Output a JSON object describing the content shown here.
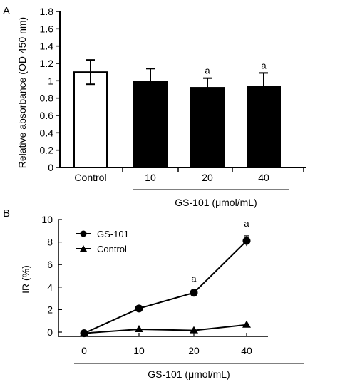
{
  "chart_data": [
    {
      "panel": "A",
      "type": "bar",
      "ylabel": "Relative absorbance (OD 450 nm)",
      "ylim": [
        0,
        1.8
      ],
      "yticks": [
        "0",
        "0.2",
        "0.4",
        "0.6",
        "0.8",
        "1",
        "1.2",
        "1.4",
        "1.6",
        "1.8"
      ],
      "categories": [
        "Control",
        "10",
        "20",
        "40"
      ],
      "values": [
        1.1,
        0.99,
        0.92,
        0.93
      ],
      "errors": [
        0.14,
        0.15,
        0.11,
        0.16
      ],
      "fills": [
        "#ffffff",
        "#000000",
        "#000000",
        "#000000"
      ],
      "annotations": [
        "",
        "",
        "a",
        "a"
      ],
      "group_label": "GS-101 (μmol/mL)"
    },
    {
      "panel": "B",
      "type": "line",
      "ylabel": "IR (%)",
      "ylim": [
        0,
        10
      ],
      "yticks": [
        "0",
        "2",
        "4",
        "6",
        "8",
        "10"
      ],
      "x": [
        0,
        10,
        20,
        40
      ],
      "xticks": [
        "0",
        "10",
        "20",
        "40"
      ],
      "xlabel": "GS-101  (μmol/mL)",
      "legend_position": "top-left",
      "series": [
        {
          "name": "GS-101",
          "marker": "circle",
          "values": [
            -0.1,
            2.1,
            3.5,
            8.1
          ],
          "errors": [
            0.1,
            0.15,
            0.15,
            0.45
          ],
          "annotations": [
            "",
            "",
            "a",
            "a"
          ]
        },
        {
          "name": "Control",
          "marker": "triangle",
          "values": [
            -0.1,
            0.25,
            0.15,
            0.65
          ],
          "errors": [
            0,
            0,
            0,
            0
          ],
          "annotations": [
            "",
            "",
            "",
            ""
          ]
        }
      ]
    }
  ]
}
